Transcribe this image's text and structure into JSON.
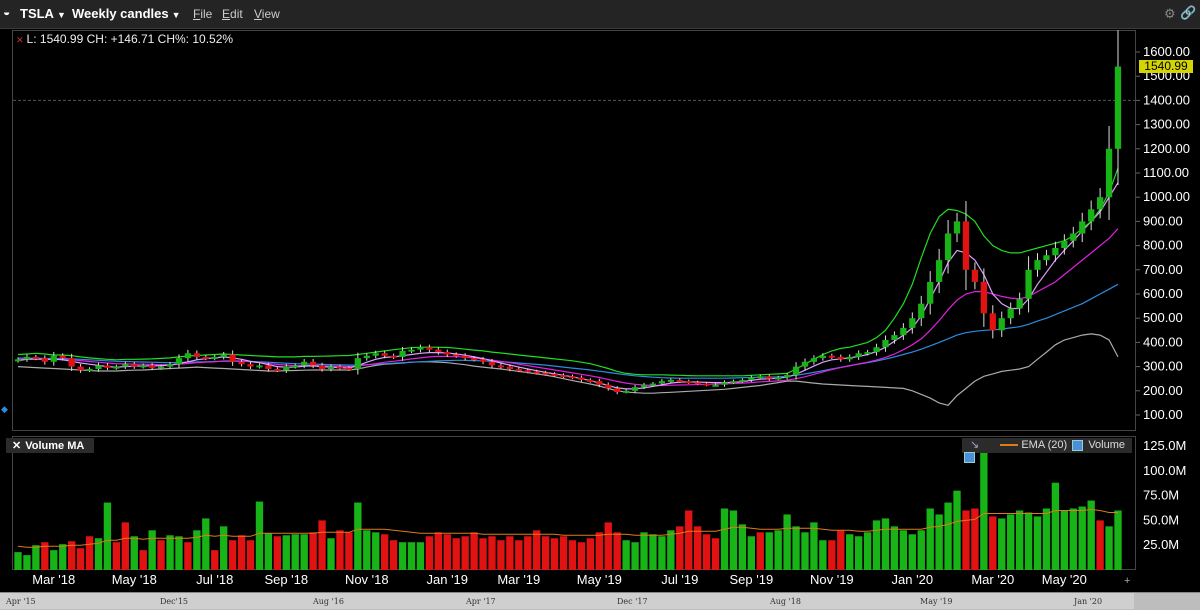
{
  "toolbar": {
    "symbol": "TSLA",
    "interval": "Weekly candles",
    "menu_file": "File",
    "menu_edit": "Edit",
    "menu_view": "View"
  },
  "info": {
    "last": "L: 1540.99",
    "change": "CH: +146.71",
    "change_pct": "CH%: 10.52%"
  },
  "price_tag": "1540.99",
  "volume_panel": {
    "title": "Volume MA",
    "legend_ema": "EMA (20)",
    "legend_volume": "Volume"
  },
  "scrollbar_labels": [
    "Apr '15",
    "Dec'15",
    "Aug '16",
    "Apr '17",
    "Dec '17",
    "Aug '18",
    "May '19",
    "Jan '20"
  ],
  "colors": {
    "up": "#17b317",
    "down": "#e01212",
    "ema": "#e07a1a",
    "upper_band": "#22dd22",
    "lower_band": "#aaaaaa",
    "ma_fast": "#e0a0ff",
    "ma_mid": "#dd22dd",
    "ma_slow": "#2a8de0"
  },
  "chart_data": [
    {
      "type": "candlestick",
      "title": "",
      "y_ticks": [
        "1600.00",
        "1500.00",
        "1400.00",
        "1300.00",
        "1200.00",
        "1100.00",
        "1000.00",
        "900.00",
        "800.00",
        "700.00",
        "600.00",
        "500.00",
        "400.00",
        "300.00",
        "200.00",
        "100.00"
      ],
      "ylim": [
        50,
        1660
      ],
      "x_ticks": [
        "Mar '18",
        "May '18",
        "Jul '18",
        "Sep '18",
        "Nov '18",
        "Jan '19",
        "Mar '19",
        "May '19",
        "Jul '19",
        "Sep '19",
        "Nov '19",
        "Jan '20",
        "Mar '20",
        "May '20"
      ],
      "x_tick_index": [
        4,
        13,
        22,
        30,
        39,
        48,
        56,
        65,
        74,
        82,
        91,
        100,
        109,
        117
      ],
      "reference_line": 1400,
      "last_price": 1540.99,
      "closes": [
        330,
        340,
        335,
        320,
        345,
        335,
        300,
        285,
        290,
        305,
        295,
        300,
        310,
        300,
        305,
        295,
        300,
        310,
        335,
        355,
        340,
        335,
        340,
        350,
        320,
        310,
        300,
        305,
        290,
        285,
        300,
        305,
        320,
        305,
        290,
        300,
        295,
        290,
        335,
        345,
        355,
        345,
        340,
        365,
        370,
        380,
        370,
        360,
        350,
        345,
        335,
        330,
        320,
        305,
        300,
        290,
        285,
        280,
        275,
        270,
        265,
        260,
        255,
        245,
        240,
        225,
        210,
        195,
        200,
        215,
        225,
        230,
        240,
        245,
        240,
        235,
        230,
        225,
        225,
        235,
        240,
        245,
        255,
        260,
        250,
        255,
        265,
        300,
        320,
        335,
        345,
        340,
        330,
        340,
        355,
        360,
        380,
        410,
        430,
        460,
        500,
        560,
        650,
        740,
        850,
        900,
        700,
        650,
        520,
        450,
        500,
        540,
        580,
        700,
        740,
        760,
        790,
        820,
        850,
        900,
        950,
        1000,
        1200,
        1540
      ],
      "series_upper_band": [
        350,
        352,
        355,
        352,
        348,
        348,
        345,
        340,
        336,
        333,
        330,
        328,
        330,
        330,
        331,
        332,
        334,
        336,
        340,
        344,
        346,
        348,
        350,
        352,
        350,
        348,
        346,
        344,
        342,
        340,
        340,
        340,
        342,
        342,
        343,
        344,
        345,
        346,
        350,
        355,
        360,
        365,
        370,
        374,
        378,
        380,
        380,
        380,
        379,
        376,
        372,
        368,
        365,
        360,
        356,
        352,
        348,
        344,
        340,
        336,
        332,
        328,
        324,
        318,
        312,
        302,
        292,
        280,
        272,
        268,
        266,
        266,
        266,
        265,
        264,
        263,
        262,
        262,
        262,
        262,
        262,
        262,
        264,
        266,
        268,
        270,
        272,
        290,
        310,
        330,
        350,
        365,
        375,
        380,
        390,
        400,
        420,
        450,
        500,
        560,
        640,
        750,
        850,
        920,
        950,
        945,
        930,
        900,
        840,
        800,
        780,
        770,
        770,
        780,
        790,
        800,
        810,
        820,
        840,
        870,
        900,
        950,
        1020,
        1120
      ],
      "series_lower_band": [
        300,
        298,
        296,
        294,
        292,
        290,
        288,
        286,
        284,
        282,
        282,
        282,
        284,
        285,
        286,
        288,
        290,
        292,
        294,
        296,
        298,
        296,
        294,
        292,
        290,
        288,
        286,
        284,
        282,
        282,
        283,
        284,
        285,
        286,
        286,
        286,
        286,
        286,
        290,
        298,
        305,
        310,
        312,
        315,
        318,
        320,
        320,
        318,
        316,
        312,
        308,
        302,
        298,
        294,
        290,
        285,
        280,
        275,
        270,
        265,
        258,
        250,
        242,
        235,
        228,
        220,
        210,
        200,
        195,
        192,
        190,
        190,
        192,
        194,
        196,
        198,
        200,
        202,
        204,
        206,
        210,
        214,
        218,
        222,
        228,
        234,
        240,
        240,
        236,
        232,
        228,
        226,
        224,
        222,
        220,
        218,
        216,
        214,
        212,
        210,
        200,
        185,
        170,
        150,
        140,
        180,
        210,
        240,
        260,
        270,
        280,
        285,
        290,
        300,
        330,
        360,
        390,
        410,
        420,
        430,
        435,
        430,
        410,
        340
      ],
      "series_ma_fast": [
        325,
        330,
        332,
        330,
        330,
        328,
        322,
        315,
        310,
        305,
        300,
        298,
        300,
        302,
        303,
        303,
        304,
        306,
        312,
        320,
        328,
        333,
        336,
        340,
        336,
        330,
        322,
        316,
        308,
        300,
        298,
        298,
        302,
        303,
        300,
        298,
        296,
        294,
        304,
        318,
        330,
        338,
        340,
        345,
        350,
        355,
        358,
        358,
        356,
        352,
        347,
        340,
        333,
        324,
        315,
        306,
        298,
        290,
        283,
        276,
        270,
        264,
        258,
        250,
        242,
        232,
        222,
        212,
        208,
        208,
        212,
        218,
        225,
        232,
        236,
        237,
        236,
        235,
        234,
        234,
        235,
        238,
        243,
        248,
        250,
        252,
        256,
        268,
        285,
        302,
        318,
        328,
        332,
        336,
        342,
        350,
        362,
        380,
        405,
        430,
        460,
        510,
        580,
        650,
        730,
        780,
        770,
        740,
        680,
        600,
        560,
        540,
        540,
        580,
        640,
        690,
        740,
        780,
        820,
        860,
        900,
        940,
        1000,
        1060
      ],
      "series_ma_mid": [
        330,
        330,
        331,
        331,
        331,
        330,
        328,
        325,
        321,
        318,
        315,
        312,
        311,
        310,
        310,
        309,
        308,
        308,
        310,
        313,
        316,
        318,
        320,
        323,
        324,
        323,
        320,
        317,
        313,
        309,
        306,
        304,
        304,
        304,
        303,
        302,
        301,
        300,
        302,
        307,
        312,
        318,
        322,
        327,
        332,
        336,
        340,
        342,
        342,
        341,
        339,
        336,
        332,
        327,
        322,
        316,
        310,
        304,
        298,
        292,
        286,
        280,
        274,
        268,
        262,
        255,
        247,
        239,
        232,
        227,
        224,
        222,
        222,
        223,
        224,
        225,
        226,
        227,
        228,
        229,
        230,
        232,
        234,
        237,
        239,
        241,
        244,
        250,
        258,
        268,
        278,
        288,
        296,
        303,
        311,
        318,
        327,
        338,
        352,
        370,
        390,
        415,
        450,
        490,
        535,
        575,
        600,
        610,
        610,
        600,
        590,
        583,
        580,
        590,
        610,
        630,
        650,
        680,
        710,
        740,
        770,
        800,
        830,
        870
      ],
      "series_ma_slow": [
        335,
        335,
        334,
        334,
        333,
        333,
        332,
        330,
        328,
        326,
        324,
        322,
        321,
        320,
        319,
        318,
        317,
        316,
        317,
        318,
        319,
        320,
        321,
        322,
        322,
        322,
        321,
        320,
        318,
        316,
        314,
        312,
        311,
        310,
        309,
        308,
        307,
        306,
        306,
        308,
        310,
        312,
        314,
        316,
        318,
        320,
        322,
        324,
        325,
        326,
        326,
        325,
        324,
        322,
        320,
        318,
        315,
        312,
        309,
        306,
        302,
        298,
        294,
        290,
        286,
        281,
        276,
        271,
        266,
        262,
        259,
        256,
        254,
        253,
        252,
        252,
        252,
        252,
        252,
        252,
        253,
        254,
        255,
        256,
        257,
        258,
        260,
        264,
        270,
        276,
        283,
        290,
        297,
        304,
        310,
        316,
        323,
        331,
        340,
        350,
        360,
        372,
        386,
        400,
        415,
        430,
        440,
        446,
        450,
        452,
        455,
        460,
        465,
        475,
        488,
        500,
        515,
        530,
        545,
        560,
        580,
        600,
        620,
        640
      ]
    },
    {
      "type": "bar",
      "title": "",
      "y_ticks": [
        "125.0M",
        "100.0M",
        "75.0M",
        "50.0M",
        "25.0M"
      ],
      "ylim": [
        0,
        135
      ],
      "volumes": [
        18,
        15,
        25,
        28,
        20,
        26,
        29,
        22,
        34,
        32,
        68,
        28,
        48,
        34,
        20,
        40,
        30,
        35,
        34,
        28,
        40,
        52,
        20,
        44,
        30,
        35,
        30,
        69,
        37,
        34,
        35,
        36,
        36,
        38,
        50,
        32,
        40,
        38,
        68,
        40,
        38,
        36,
        30,
        28,
        28,
        28,
        34,
        38,
        36,
        32,
        34,
        38,
        32,
        34,
        30,
        34,
        30,
        34,
        40,
        34,
        32,
        34,
        30,
        28,
        32,
        38,
        48,
        38,
        30,
        28,
        38,
        36,
        34,
        40,
        44,
        60,
        44,
        36,
        32,
        62,
        60,
        46,
        34,
        38,
        38,
        40,
        56,
        44,
        38,
        48,
        30,
        30,
        40,
        36,
        34,
        38,
        50,
        52,
        44,
        40,
        36,
        40,
        62,
        56,
        68,
        80,
        60,
        62,
        128,
        54,
        52,
        56,
        60,
        58,
        54,
        62,
        88,
        60,
        62,
        64,
        70,
        50,
        44,
        60
      ],
      "vol_up": [
        1,
        1,
        1,
        0,
        1,
        1,
        0,
        0,
        0,
        1,
        1,
        0,
        0,
        1,
        0,
        1,
        0,
        1,
        1,
        0,
        1,
        1,
        0,
        1,
        0,
        0,
        0,
        1,
        1,
        0,
        1,
        1,
        1,
        0,
        0,
        1,
        0,
        0,
        1,
        1,
        1,
        0,
        0,
        1,
        1,
        1,
        0,
        0,
        0,
        0,
        0,
        0,
        0,
        0,
        0,
        0,
        0,
        0,
        0,
        0,
        0,
        0,
        0,
        0,
        0,
        0,
        0,
        0,
        1,
        1,
        1,
        1,
        1,
        1,
        0,
        0,
        0,
        0,
        0,
        1,
        1,
        1,
        1,
        0,
        1,
        1,
        1,
        1,
        1,
        1,
        1,
        0,
        0,
        1,
        1,
        1,
        1,
        1,
        1,
        1,
        1,
        1,
        1,
        1,
        1,
        1,
        0,
        0,
        1,
        0,
        1,
        1,
        1,
        1,
        1,
        1,
        1,
        1,
        1,
        1,
        1,
        0,
        1,
        1
      ],
      "ema_line": [
        24,
        23,
        23,
        24,
        24,
        24,
        25,
        25,
        26,
        27,
        30,
        30,
        32,
        32,
        31,
        32,
        32,
        32,
        32,
        32,
        33,
        35,
        34,
        35,
        34,
        34,
        34,
        37,
        37,
        37,
        37,
        37,
        37,
        37,
        38,
        38,
        38,
        38,
        41,
        41,
        41,
        41,
        40,
        39,
        38,
        37,
        37,
        37,
        37,
        37,
        37,
        37,
        36,
        36,
        36,
        36,
        36,
        36,
        36,
        36,
        36,
        35,
        35,
        35,
        35,
        35,
        36,
        36,
        36,
        35,
        35,
        35,
        35,
        36,
        37,
        39,
        39,
        39,
        39,
        41,
        43,
        43,
        42,
        41,
        41,
        41,
        42,
        42,
        42,
        42,
        41,
        40,
        40,
        40,
        39,
        39,
        40,
        41,
        41,
        41,
        41,
        41,
        43,
        44,
        46,
        49,
        50,
        51,
        57,
        57,
        57,
        57,
        57,
        57,
        57,
        57,
        60,
        60,
        60,
        60,
        61,
        60,
        58,
        58
      ]
    }
  ]
}
